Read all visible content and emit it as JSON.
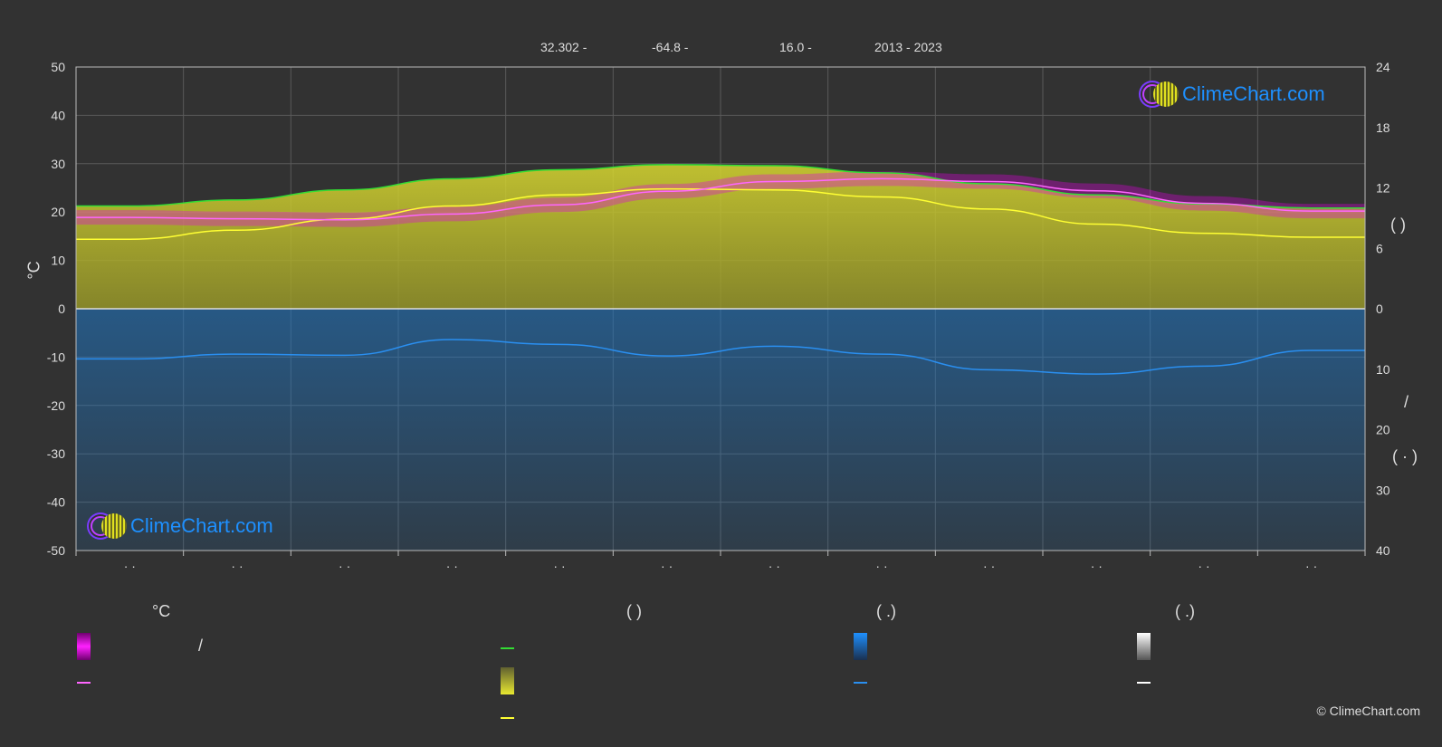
{
  "header": {
    "lat": "32.302 -",
    "lon": "-64.8 -",
    "elev": "16.0 -",
    "years": "2013 - 2023"
  },
  "logo_text": "ClimeChart.com",
  "copyright": "© ClimeChart.com",
  "axes": {
    "left_label": "°C",
    "right_top_label": "(      )",
    "right_bottom_label": "(  ·  )",
    "right_mid_label": "/"
  },
  "legend": {
    "col1_title": "°C",
    "col2_title": "(          )",
    "col3_title": "(    .)",
    "col4_title": "(    .)",
    "col1_label1": "/"
  },
  "colors": {
    "background": "#323232",
    "max_temp_range": "#e000e0",
    "mean_temp": "#ff66ff",
    "daylight": "#33dd33",
    "sunshine": "#d8d830",
    "mean_sunshine": "#ffff33",
    "precipitation": "#1e78c8",
    "mean_precip": "#2a8ff0"
  },
  "chart_data": {
    "type": "line",
    "x_months": [
      "· ·",
      "· ·",
      "· ·",
      "· ·",
      "· ·",
      "· ·",
      "· ·",
      "· ·",
      "· ·",
      "· ·",
      "· ·",
      "· ·"
    ],
    "left_axis": {
      "label": "°C",
      "ticks": [
        50,
        40,
        30,
        20,
        10,
        0,
        -10,
        -20,
        -30,
        -40,
        -50
      ],
      "ylim": [
        -50,
        50
      ]
    },
    "right_axis_top": {
      "ticks": [
        24,
        18,
        12,
        6,
        0
      ],
      "ylim": [
        0,
        24
      ]
    },
    "right_axis_bottom": {
      "ticks": [
        0,
        10,
        20,
        30,
        40
      ],
      "ylim": [
        0,
        40
      ]
    },
    "grid": true,
    "series": [
      {
        "key": "daylight",
        "axis": "hours",
        "values": [
          10.2,
          10.8,
          11.8,
          12.9,
          13.8,
          14.3,
          14.2,
          13.5,
          12.4,
          11.3,
          10.4,
          10.0
        ]
      },
      {
        "key": "sunshine",
        "axis": "hours",
        "values": [
          6.9,
          7.8,
          8.9,
          10.2,
          11.3,
          11.9,
          11.8,
          11.1,
          9.9,
          8.4,
          7.5,
          7.1
        ]
      },
      {
        "key": "mean_temp",
        "axis": "celsius",
        "values": [
          18.9,
          18.6,
          18.4,
          19.6,
          21.5,
          24.3,
          26.3,
          26.9,
          26.3,
          24.4,
          21.8,
          20.2
        ]
      },
      {
        "key": "mean_precip",
        "axis": "mm",
        "values": [
          8.3,
          7.5,
          7.7,
          5.1,
          5.9,
          7.8,
          6.2,
          7.5,
          10.1,
          10.8,
          9.5,
          6.9
        ]
      }
    ]
  }
}
